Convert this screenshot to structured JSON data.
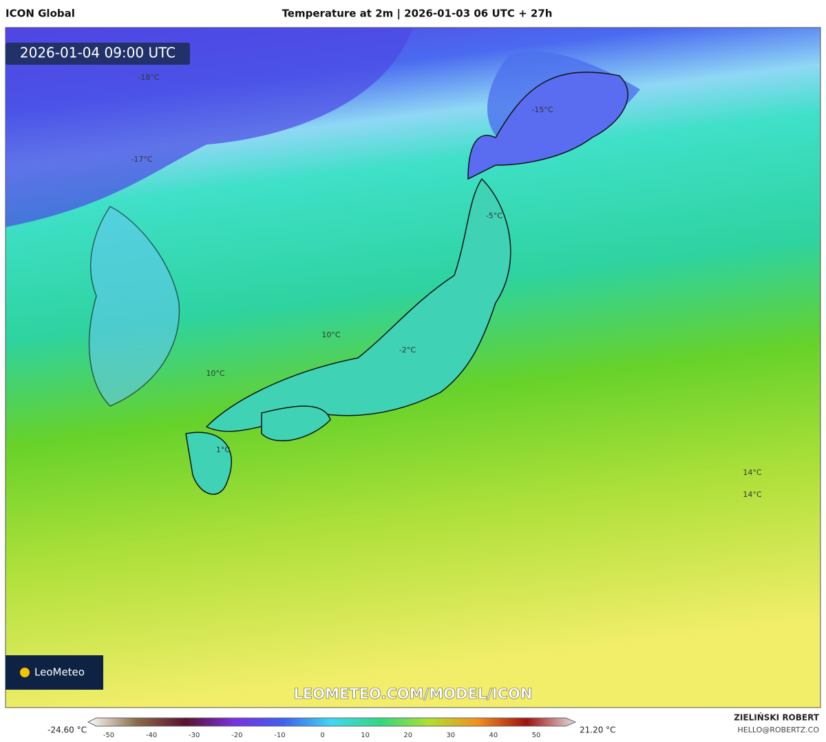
{
  "header": {
    "model": "ICON Global",
    "title": "Temperature at 2m | 2026-01-03 06 UTC + 27h"
  },
  "map": {
    "valid_time": "2026-01-04 09:00 UTC",
    "labels": [
      "-18°C",
      "-17°C",
      "-15°C",
      "-5°C",
      "10°C",
      "10°C",
      "-2°C",
      "1°C",
      "14°C",
      "14°C"
    ],
    "watermark": "LEOMETEO.COM/MODEL/ICON",
    "logo": "LeoMeteo"
  },
  "colorbar": {
    "min_label": "-24.60 °C",
    "max_label": "21.20 °C",
    "ticks": [
      -50,
      -40,
      -30,
      -20,
      -10,
      0,
      10,
      20,
      30,
      40,
      50
    ]
  },
  "footer": {
    "author": "ZIELIŃSKI ROBERT",
    "email": "HELLO@ROBERTZ.CO"
  }
}
